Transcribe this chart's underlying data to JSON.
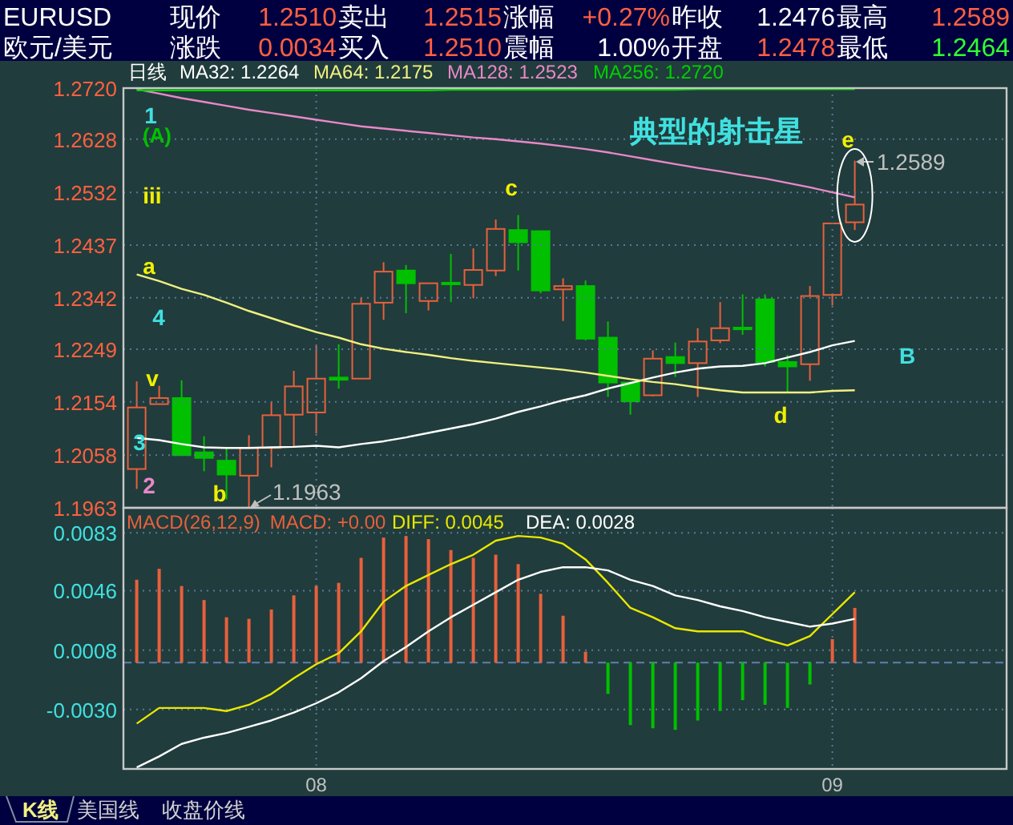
{
  "chart_data": [
    {
      "type": "other",
      "annotations": [
        "EURUSD",
        "现价",
        "1.2510",
        "卖出",
        "1.2515",
        "涨幅",
        "+0.27%",
        "昨收",
        "1.2476",
        "最高",
        "1.2589",
        "欧元/美元",
        "涨跌",
        "0.0034",
        "买入",
        "1.2510",
        "震幅",
        "1.00%",
        "开盘",
        "1.2478",
        "最低",
        "1.2464"
      ],
      "colors": [
        "#ffffff",
        "#ffffff",
        "#ff6040",
        "#ffffff",
        "#ff6040",
        "#ffffff",
        "#ff6040",
        "#ffffff",
        "#ffffff",
        "#ffffff",
        "#ff6040",
        "#ffffff",
        "#ffffff",
        "#ff6040",
        "#ffffff",
        "#ff6040",
        "#ffffff",
        "#ffffff",
        "#ffffff",
        "#ff6040",
        "#ffffff",
        "#30ff30"
      ]
    },
    {
      "type": "candlestick",
      "title": "日线",
      "categories": [
        null,
        null,
        null,
        null,
        null,
        null,
        null,
        null,
        "08",
        null,
        null,
        null,
        null,
        null,
        null,
        null,
        null,
        null,
        null,
        null,
        null,
        null,
        null,
        null,
        null,
        null,
        null,
        null,
        null,
        null,
        null,
        "09",
        null
      ],
      "ohlc": [
        [
          1.2033,
          1.2191,
          1.1997,
          1.2144
        ],
        [
          1.215,
          1.2183,
          1.215,
          1.2161
        ],
        [
          1.2161,
          1.2193,
          1.2058,
          1.2058
        ],
        [
          1.2063,
          1.2092,
          1.2029,
          1.2053
        ],
        [
          1.2048,
          1.207,
          1.1978,
          1.2023
        ],
        [
          1.2021,
          1.2094,
          1.1963,
          1.2071
        ],
        [
          1.2071,
          1.2154,
          1.2036,
          1.213
        ],
        [
          1.2131,
          1.221,
          1.2074,
          1.2182
        ],
        [
          1.2135,
          1.2255,
          1.2097,
          1.2196
        ],
        [
          1.2198,
          1.2258,
          1.2178,
          1.2194
        ],
        [
          1.2196,
          1.2342,
          1.2196,
          1.2331
        ],
        [
          1.2333,
          1.2406,
          1.2302,
          1.2389
        ],
        [
          1.2391,
          1.2401,
          1.2314,
          1.2368
        ],
        [
          1.2336,
          1.2368,
          1.2319,
          1.2368
        ],
        [
          1.2369,
          1.2421,
          1.2334,
          1.2367
        ],
        [
          1.2365,
          1.2431,
          1.2341,
          1.2392
        ],
        [
          1.2391,
          1.2483,
          1.2381,
          1.2466
        ],
        [
          1.2464,
          1.2491,
          1.2391,
          1.2442
        ],
        [
          1.2462,
          1.2462,
          1.235,
          1.2355
        ],
        [
          1.2357,
          1.2377,
          1.23,
          1.2363
        ],
        [
          1.2363,
          1.2373,
          1.2265,
          1.2268
        ],
        [
          1.227,
          1.2299,
          1.2163,
          1.2189
        ],
        [
          1.2189,
          1.2189,
          1.2131,
          1.2155
        ],
        [
          1.2166,
          1.2247,
          1.2164,
          1.2232
        ],
        [
          1.2235,
          1.2261,
          1.2199,
          1.2224
        ],
        [
          1.2224,
          1.2287,
          1.2163,
          1.2263
        ],
        [
          1.2265,
          1.2334,
          1.226,
          1.2287
        ],
        [
          1.2288,
          1.2348,
          1.2275,
          1.2285
        ],
        [
          1.2339,
          1.2348,
          1.2218,
          1.2226
        ],
        [
          1.2226,
          1.2239,
          1.2171,
          1.2218
        ],
        [
          1.2222,
          1.2363,
          1.2192,
          1.2345
        ],
        [
          1.2347,
          1.2477,
          1.2328,
          1.2476
        ],
        [
          1.2478,
          1.2589,
          1.2464,
          1.251
        ]
      ],
      "series": [
        {
          "type": "line",
          "name": "MA32: 1.2264",
          "color": "#ffffff",
          "values": [
            1.2089,
            1.2085,
            1.2078,
            1.2072,
            1.2071,
            1.2071,
            1.2072,
            1.2073,
            1.2075,
            1.2072,
            1.2078,
            1.2083,
            1.209,
            1.2098,
            1.2106,
            1.2114,
            1.2124,
            1.2136,
            1.2146,
            1.2157,
            1.2166,
            1.2178,
            1.2188,
            1.2198,
            1.2207,
            1.2214,
            1.2218,
            1.2219,
            1.2224,
            1.2234,
            1.2244,
            1.2256,
            1.2264
          ]
        },
        {
          "type": "line",
          "name": "MA64: 1.2175",
          "color": "#f0f080",
          "values": [
            1.2384,
            1.2372,
            1.2358,
            1.2347,
            1.2333,
            1.2318,
            1.2305,
            1.2292,
            1.228,
            1.227,
            1.2258,
            1.225,
            1.2244,
            1.2239,
            1.2233,
            1.2228,
            1.2224,
            1.222,
            1.2216,
            1.2212,
            1.2207,
            1.2201,
            1.2195,
            1.219,
            1.2186,
            1.218,
            1.2175,
            1.2171,
            1.2171,
            1.2171,
            1.2171,
            1.2174,
            1.2175
          ]
        },
        {
          "type": "line",
          "name": "MA128: 1.2523",
          "color": "#e888c8",
          "values": [
            1.2718,
            1.271,
            1.2702,
            1.2695,
            1.2688,
            1.2681,
            1.2675,
            1.2669,
            1.2663,
            1.2657,
            1.2651,
            1.2647,
            1.2643,
            1.2639,
            1.2635,
            1.2631,
            1.2628,
            1.2624,
            1.262,
            1.2615,
            1.261,
            1.2604,
            1.2597,
            1.259,
            1.2583,
            1.2576,
            1.257,
            1.2563,
            1.2557,
            1.2549,
            1.2541,
            1.2532,
            1.2523
          ]
        },
        {
          "type": "line",
          "name": "MA256: 1.2720",
          "color": "#00d000",
          "values": [
            1.2716,
            1.2716,
            1.2716,
            1.2716,
            1.2716,
            1.2716,
            1.2716,
            1.2716,
            1.2716,
            1.2716,
            1.2716,
            1.2716,
            1.2716,
            1.2716,
            1.2717,
            1.2717,
            1.2717,
            1.2717,
            1.2717,
            1.2717,
            1.2717,
            1.2717,
            1.2717,
            1.2717,
            1.2717,
            1.2718,
            1.2718,
            1.2718,
            1.2718,
            1.2718,
            1.2718,
            1.2718,
            1.2718
          ]
        }
      ],
      "ylim": [
        1.1963,
        1.272
      ],
      "yticks": [
        {
          "value": 1.272,
          "label": "1.2720"
        },
        1.2628,
        1.2532,
        1.2437,
        1.2342,
        1.2249,
        1.2154,
        1.2058,
        1.1963
      ],
      "grid": true,
      "legend": "top left",
      "tick_labels": "y",
      "annotations": [
        "1",
        "(A)",
        "iii",
        "a",
        "4",
        "v",
        "3",
        "2",
        "b",
        "c",
        "d",
        "e",
        "B",
        "典型的射击星",
        "1.2589",
        "1.1963"
      ]
    },
    {
      "type": "bar",
      "title": "MACD(26,12,9)",
      "categories": [
        null,
        null,
        null,
        null,
        null,
        null,
        null,
        null,
        "08",
        null,
        null,
        null,
        null,
        null,
        null,
        null,
        null,
        null,
        null,
        null,
        null,
        null,
        null,
        null,
        null,
        null,
        null,
        null,
        null,
        null,
        null,
        "09",
        null
      ],
      "series": [
        {
          "type": "bar",
          "name": "MACD: +0.00",
          "color": "#e8603c",
          "colors": [
            "#e8603c",
            "#e8603c",
            "#e8603c",
            "#e8603c",
            "#e8603c",
            "#e8603c",
            "#e8603c",
            "#e8603c",
            "#e8603c",
            "#e8603c",
            "#e8603c",
            "#e8603c",
            "#e8603c",
            "#e8603c",
            "#e8603c",
            "#e8603c",
            "#e8603c",
            "#e8603c",
            "#e8603c",
            "#e8603c",
            "#e8603c",
            "#00c000",
            "#00c000",
            "#00c000",
            "#00c000",
            "#00c000",
            "#00c000",
            "#00c000",
            "#00c000",
            "#00c000",
            "#00c000",
            "#e8603c",
            "#e8603c"
          ],
          "values": [
            0.0053,
            0.006,
            0.0049,
            0.004,
            0.0029,
            0.0028,
            0.0034,
            0.0043,
            0.0049,
            0.0051,
            0.0067,
            0.008,
            0.0081,
            0.0079,
            0.0072,
            0.0067,
            0.0069,
            0.0063,
            0.0044,
            0.003,
            0.0007,
            -0.002,
            -0.004,
            -0.0042,
            -0.0043,
            -0.0037,
            -0.0031,
            -0.0024,
            -0.0027,
            -0.0029,
            -0.0014,
            0.0015,
            0.0035
          ]
        },
        {
          "type": "line",
          "name": "DIFF: 0.0045",
          "color": "#e8e800",
          "values": [
            -0.0039,
            -0.0029,
            -0.0029,
            -0.0029,
            -0.0031,
            -0.0027,
            -0.002,
            -0.001,
            -0.0001,
            0.0006,
            0.002,
            0.0039,
            0.0049,
            0.0056,
            0.0063,
            0.0069,
            0.0078,
            0.0081,
            0.008,
            0.0076,
            0.0066,
            0.0051,
            0.0035,
            0.0029,
            0.0022,
            0.002,
            0.002,
            0.002,
            0.0015,
            0.0011,
            0.0017,
            0.0031,
            0.0045
          ]
        },
        {
          "type": "line",
          "name": "DEA: 0.0028",
          "color": "#ffffff",
          "values": [
            -0.0067,
            -0.006,
            -0.0052,
            -0.0048,
            -0.0045,
            -0.0041,
            -0.0037,
            -0.0032,
            -0.0026,
            -0.0019,
            -0.001,
            0.0001,
            0.001,
            0.002,
            0.0029,
            0.0037,
            0.0045,
            0.0053,
            0.0058,
            0.0061,
            0.0061,
            0.0059,
            0.0053,
            0.0049,
            0.0043,
            0.004,
            0.0036,
            0.0033,
            0.0029,
            0.0026,
            0.0023,
            0.0025,
            0.0028
          ]
        }
      ],
      "ylim": [
        -0.0068,
        0.0099
      ],
      "yticks": [
        0.0083,
        0.0046,
        0.0008,
        {
          "value": -0.003,
          "label": "-0.0030"
        }
      ],
      "grid": true,
      "legend": "top left",
      "ref_lines": [
        {
          "axis": "y",
          "value": 0,
          "line_style": "dashed",
          "color": "#6080b0"
        }
      ]
    },
    {
      "type": "other",
      "annotations": [
        "K线",
        "美国线",
        "收盘价线"
      ]
    }
  ]
}
